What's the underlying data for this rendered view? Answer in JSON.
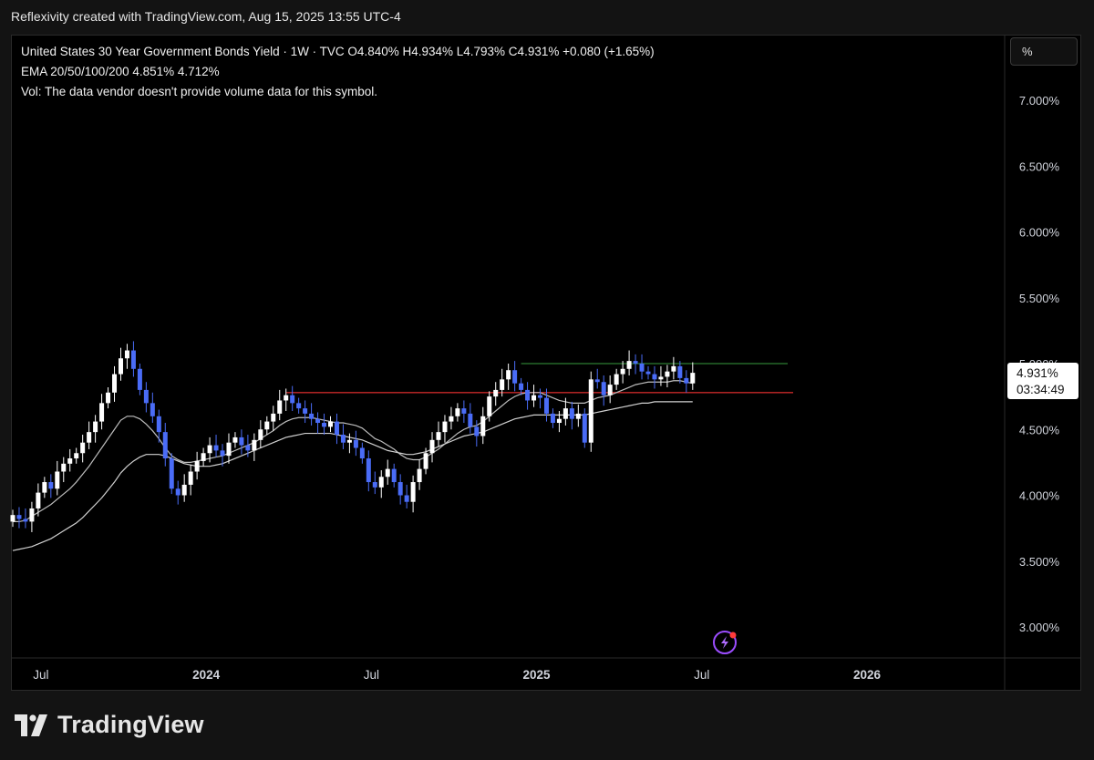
{
  "header": {
    "attribution": "Reflexivity created with TradingView.com, Aug 15, 2025 13:55 UTC-4"
  },
  "legend": {
    "line1": "United States 30 Year Government Bonds Yield · 1W · TVC  O4.840%  H4.934%  L4.793%  C4.931%  +0.080 (+1.65%)",
    "line2": "EMA 20/50/100/200  4.851%  4.712%",
    "line3": "Vol: The data vendor doesn't provide volume data for this symbol."
  },
  "scale_button": {
    "label": "%"
  },
  "last_price": {
    "value": "4.931%",
    "countdown": "03:34:49"
  },
  "brand": {
    "name": "TradingView"
  },
  "colors": {
    "up": "#ffffff",
    "down": "#4a6cf7",
    "ema_fast": "#bdbdbd",
    "ema_slow": "#d0d0d0",
    "resistance": "#2e7d32",
    "support": "#c62828",
    "background": "#000000"
  },
  "icons": {
    "replay": "lightning-icon"
  },
  "chart_data": {
    "type": "candlestick",
    "title": "United States 30 Year Government Bonds Yield",
    "ylabel": "",
    "xlabel": "",
    "ylim": [
      2.8,
      7.4
    ],
    "grid": false,
    "y_ticks": [
      "7.000%",
      "6.500%",
      "6.000%",
      "5.500%",
      "5.000%",
      "4.500%",
      "4.000%",
      "3.500%",
      "3.000%"
    ],
    "y_tick_values": [
      7.0,
      6.5,
      6.0,
      5.5,
      5.0,
      4.5,
      4.0,
      3.5,
      3.0
    ],
    "x_ticks": [
      "Jul",
      "2024",
      "Jul",
      "2025",
      "Jul",
      "2026"
    ],
    "x_tick_weeks": [
      0,
      26,
      52,
      78,
      104,
      130
    ],
    "start_week_offset": -3,
    "closes": [
      3.85,
      3.82,
      3.8,
      3.9,
      4.02,
      4.1,
      4.05,
      4.18,
      4.24,
      4.28,
      4.32,
      4.4,
      4.48,
      4.56,
      4.7,
      4.78,
      4.92,
      5.04,
      5.1,
      4.96,
      4.8,
      4.7,
      4.6,
      4.48,
      4.28,
      4.05,
      4.0,
      4.08,
      4.18,
      4.26,
      4.32,
      4.38,
      4.34,
      4.3,
      4.4,
      4.44,
      4.38,
      4.34,
      4.42,
      4.5,
      4.56,
      4.62,
      4.72,
      4.76,
      4.7,
      4.66,
      4.62,
      4.58,
      4.55,
      4.52,
      4.56,
      4.46,
      4.4,
      4.42,
      4.36,
      4.28,
      4.1,
      4.06,
      4.14,
      4.2,
      4.1,
      4.0,
      3.95,
      4.1,
      4.2,
      4.32,
      4.42,
      4.48,
      4.56,
      4.6,
      4.66,
      4.62,
      4.52,
      4.45,
      4.6,
      4.75,
      4.8,
      4.88,
      4.95,
      4.85,
      4.8,
      4.72,
      4.76,
      4.74,
      4.62,
      4.55,
      4.58,
      4.66,
      4.58,
      4.62,
      4.4,
      4.88,
      4.86,
      4.76,
      4.84,
      4.92,
      4.96,
      5.02,
      5.0,
      4.94,
      4.92,
      4.88,
      4.9,
      4.94,
      4.98,
      4.89,
      4.85,
      4.93
    ],
    "ema_fast": [
      3.8,
      3.8,
      3.81,
      3.84,
      3.87,
      3.9,
      3.93,
      3.97,
      4.01,
      4.05,
      4.1,
      4.16,
      4.22,
      4.29,
      4.36,
      4.43,
      4.5,
      4.57,
      4.6,
      4.6,
      4.58,
      4.54,
      4.49,
      4.43,
      4.36,
      4.3,
      4.27,
      4.25,
      4.25,
      4.26,
      4.27,
      4.28,
      4.29,
      4.3,
      4.32,
      4.34,
      4.36,
      4.38,
      4.4,
      4.43,
      4.46,
      4.49,
      4.53,
      4.56,
      4.58,
      4.59,
      4.59,
      4.59,
      4.58,
      4.57,
      4.56,
      4.55,
      4.55,
      4.54,
      4.53,
      4.51,
      4.47,
      4.43,
      4.41,
      4.38,
      4.35,
      4.31,
      4.28,
      4.27,
      4.27,
      4.29,
      4.32,
      4.35,
      4.39,
      4.43,
      4.47,
      4.5,
      4.52,
      4.53,
      4.56,
      4.6,
      4.64,
      4.68,
      4.72,
      4.75,
      4.77,
      4.78,
      4.78,
      4.78,
      4.76,
      4.74,
      4.72,
      4.71,
      4.7,
      4.7,
      4.7,
      4.72,
      4.74,
      4.75,
      4.76,
      4.78,
      4.8,
      4.82,
      4.84,
      4.85,
      4.86,
      4.86,
      4.86,
      4.86,
      4.87,
      4.87,
      4.86,
      4.85
    ],
    "ema_slow": [
      3.58,
      3.59,
      3.6,
      3.61,
      3.63,
      3.65,
      3.67,
      3.7,
      3.73,
      3.76,
      3.79,
      3.83,
      3.88,
      3.93,
      3.98,
      4.04,
      4.1,
      4.17,
      4.22,
      4.26,
      4.29,
      4.31,
      4.31,
      4.31,
      4.3,
      4.28,
      4.26,
      4.24,
      4.23,
      4.22,
      4.22,
      4.22,
      4.23,
      4.24,
      4.26,
      4.28,
      4.3,
      4.32,
      4.34,
      4.36,
      4.38,
      4.4,
      4.42,
      4.44,
      4.45,
      4.46,
      4.47,
      4.47,
      4.47,
      4.47,
      4.47,
      4.46,
      4.45,
      4.44,
      4.43,
      4.42,
      4.4,
      4.38,
      4.36,
      4.34,
      4.33,
      4.32,
      4.31,
      4.31,
      4.32,
      4.33,
      4.35,
      4.37,
      4.39,
      4.41,
      4.43,
      4.45,
      4.46,
      4.47,
      4.48,
      4.5,
      4.52,
      4.54,
      4.56,
      4.58,
      4.59,
      4.6,
      4.61,
      4.61,
      4.61,
      4.61,
      4.61,
      4.61,
      4.61,
      4.61,
      4.61,
      4.62,
      4.63,
      4.64,
      4.65,
      4.66,
      4.67,
      4.68,
      4.69,
      4.7,
      4.7,
      4.71,
      4.71,
      4.71,
      4.71,
      4.71,
      4.71,
      4.71
    ],
    "resistance_level": 5.0,
    "support_level": 4.78
  }
}
